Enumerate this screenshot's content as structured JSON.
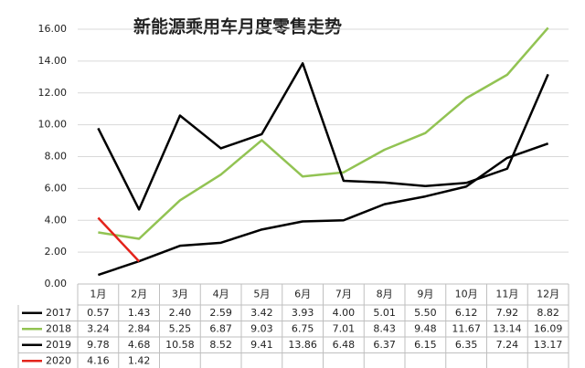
{
  "chart_data": {
    "type": "line",
    "title": "新能源乘用车月度零售走势",
    "categories": [
      "1月",
      "2月",
      "3月",
      "4月",
      "5月",
      "6月",
      "7月",
      "8月",
      "9月",
      "10月",
      "11月",
      "12月"
    ],
    "series": [
      {
        "name": "2017",
        "color": "#000000",
        "values": [
          0.57,
          1.43,
          2.4,
          2.59,
          3.42,
          3.93,
          4.0,
          5.01,
          5.5,
          6.12,
          7.92,
          8.82
        ],
        "value_labels": [
          "0.57",
          "1.43",
          "2.40",
          "2.59",
          "3.42",
          "3.93",
          "4.00",
          "5.01",
          "5.50",
          "6.12",
          "7.92",
          "8.82"
        ]
      },
      {
        "name": "2018",
        "color": "#92c353",
        "values": [
          3.24,
          2.84,
          5.25,
          6.87,
          9.03,
          6.75,
          7.01,
          8.43,
          9.48,
          11.67,
          13.14,
          16.09
        ],
        "value_labels": [
          "3.24",
          "2.84",
          "5.25",
          "6.87",
          "9.03",
          "6.75",
          "7.01",
          "8.43",
          "9.48",
          "11.67",
          "13.14",
          "16.09"
        ]
      },
      {
        "name": "2019",
        "color": "#000000",
        "values": [
          9.78,
          4.68,
          10.58,
          8.52,
          9.41,
          13.86,
          6.48,
          6.37,
          6.15,
          6.35,
          7.24,
          13.17
        ],
        "value_labels": [
          "9.78",
          "4.68",
          "10.58",
          "8.52",
          "9.41",
          "13.86",
          "6.48",
          "6.37",
          "6.15",
          "6.35",
          "7.24",
          "13.17"
        ]
      },
      {
        "name": "2020",
        "color": "#e3231b",
        "values": [
          4.16,
          1.42,
          null,
          null,
          null,
          null,
          null,
          null,
          null,
          null,
          null,
          null
        ],
        "value_labels": [
          "4.16",
          "1.42",
          null,
          null,
          null,
          null,
          null,
          null,
          null,
          null,
          null,
          null
        ]
      }
    ],
    "ylim": [
      0,
      16
    ],
    "yticks": [
      {
        "value": 0,
        "label": "0.00"
      },
      {
        "value": 2,
        "label": "2.00"
      },
      {
        "value": 4,
        "label": "4.00"
      },
      {
        "value": 6,
        "label": "6.00"
      },
      {
        "value": 8,
        "label": "8.00"
      },
      {
        "value": 10,
        "label": "10.00"
      },
      {
        "value": 12,
        "label": "12.00"
      },
      {
        "value": 14,
        "label": "14.00"
      },
      {
        "value": 16,
        "label": "16.00"
      }
    ],
    "grid": true
  }
}
